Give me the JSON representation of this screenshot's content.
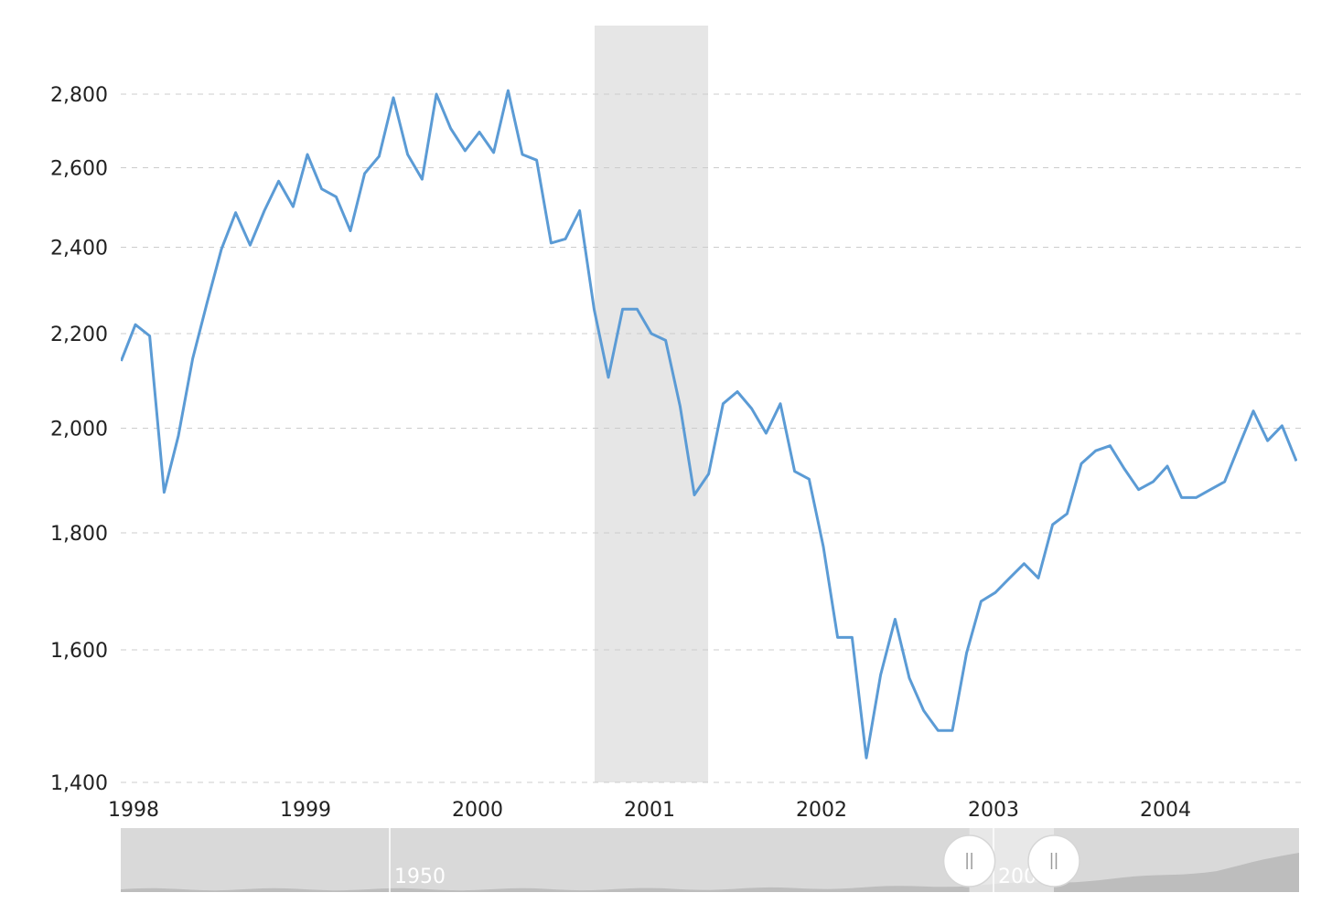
{
  "colors": {
    "line": "#5b9bd5",
    "recession": "#e6e6e6",
    "grid": "#cccccc",
    "navigator_bg": "#d9d9d9",
    "navigator_area": "#bdbdbd"
  },
  "chart_data": {
    "type": "line",
    "title": "",
    "xlabel": "",
    "ylabel": "",
    "y_scale": "log",
    "xlim": [
      "1998-01",
      "2004-11"
    ],
    "ylim": [
      1400,
      2950
    ],
    "grid": true,
    "y_ticks": [
      {
        "value": 1400,
        "label": "1,400"
      },
      {
        "value": 1600,
        "label": "1,600"
      },
      {
        "value": 1800,
        "label": "1,800"
      },
      {
        "value": 2000,
        "label": "2,000"
      },
      {
        "value": 2200,
        "label": "2,200"
      },
      {
        "value": 2400,
        "label": "2,400"
      },
      {
        "value": 2600,
        "label": "2,600"
      },
      {
        "value": 2800,
        "label": "2,800"
      }
    ],
    "x_ticks": [
      {
        "value": 1998,
        "label": "1998"
      },
      {
        "value": 1999,
        "label": "1999"
      },
      {
        "value": 2000,
        "label": "2000"
      },
      {
        "value": 2001,
        "label": "2001"
      },
      {
        "value": 2002,
        "label": "2002"
      },
      {
        "value": 2003,
        "label": "2003"
      },
      {
        "value": 2004,
        "label": "2004"
      }
    ],
    "recession_band": {
      "start": 2000.67,
      "end": 2001.33
    },
    "series": [
      {
        "values": [
          [
            1997.917,
            2140
          ],
          [
            1998.0,
            2220
          ],
          [
            1998.083,
            2195
          ],
          [
            1998.167,
            1875
          ],
          [
            1998.25,
            1985
          ],
          [
            1998.333,
            2145
          ],
          [
            1998.417,
            2270
          ],
          [
            1998.5,
            2395
          ],
          [
            1998.583,
            2485
          ],
          [
            1998.667,
            2405
          ],
          [
            1998.75,
            2490
          ],
          [
            1998.833,
            2565
          ],
          [
            1998.917,
            2500
          ],
          [
            1999.0,
            2635
          ],
          [
            1999.083,
            2545
          ],
          [
            1999.167,
            2525
          ],
          [
            1999.25,
            2440
          ],
          [
            1999.333,
            2585
          ],
          [
            1999.417,
            2630
          ],
          [
            1999.5,
            2790
          ],
          [
            1999.583,
            2635
          ],
          [
            1999.667,
            2570
          ],
          [
            1999.75,
            2800
          ],
          [
            1999.833,
            2705
          ],
          [
            1999.917,
            2645
          ],
          [
            2000.0,
            2695
          ],
          [
            2000.083,
            2640
          ],
          [
            2000.167,
            2810
          ],
          [
            2000.25,
            2635
          ],
          [
            2000.333,
            2620
          ],
          [
            2000.417,
            2410
          ],
          [
            2000.5,
            2420
          ],
          [
            2000.583,
            2490
          ],
          [
            2000.667,
            2255
          ],
          [
            2000.75,
            2105
          ],
          [
            2000.833,
            2255
          ],
          [
            2000.917,
            2255
          ],
          [
            2001.0,
            2200
          ],
          [
            2001.083,
            2185
          ],
          [
            2001.167,
            2045
          ],
          [
            2001.25,
            1870
          ],
          [
            2001.333,
            1910
          ],
          [
            2001.417,
            2050
          ],
          [
            2001.5,
            2075
          ],
          [
            2001.583,
            2040
          ],
          [
            2001.667,
            1990
          ],
          [
            2001.75,
            2050
          ],
          [
            2001.833,
            1915
          ],
          [
            2001.917,
            1900
          ],
          [
            2002.0,
            1775
          ],
          [
            2002.083,
            1620
          ],
          [
            2002.167,
            1620
          ],
          [
            2002.25,
            1435
          ],
          [
            2002.333,
            1560
          ],
          [
            2002.417,
            1650
          ],
          [
            2002.5,
            1555
          ],
          [
            2002.583,
            1505
          ],
          [
            2002.667,
            1475
          ],
          [
            2002.75,
            1475
          ],
          [
            2002.833,
            1595
          ],
          [
            2002.917,
            1680
          ],
          [
            2003.0,
            1695
          ],
          [
            2003.083,
            1720
          ],
          [
            2003.167,
            1745
          ],
          [
            2003.25,
            1720
          ],
          [
            2003.333,
            1815
          ],
          [
            2003.417,
            1835
          ],
          [
            2003.5,
            1930
          ],
          [
            2003.583,
            1955
          ],
          [
            2003.667,
            1965
          ],
          [
            2003.75,
            1920
          ],
          [
            2003.833,
            1880
          ],
          [
            2003.917,
            1895
          ],
          [
            2004.0,
            1925
          ],
          [
            2004.083,
            1865
          ],
          [
            2004.167,
            1865
          ],
          [
            2004.25,
            1880
          ],
          [
            2004.333,
            1895
          ],
          [
            2004.417,
            1965
          ],
          [
            2004.5,
            2035
          ],
          [
            2004.583,
            1975
          ],
          [
            2004.667,
            2005
          ],
          [
            2004.75,
            1935
          ]
        ]
      }
    ]
  },
  "navigator": {
    "labels": [
      {
        "year": 1950,
        "text": "1950"
      },
      {
        "year": 2000,
        "text": "200"
      }
    ]
  }
}
